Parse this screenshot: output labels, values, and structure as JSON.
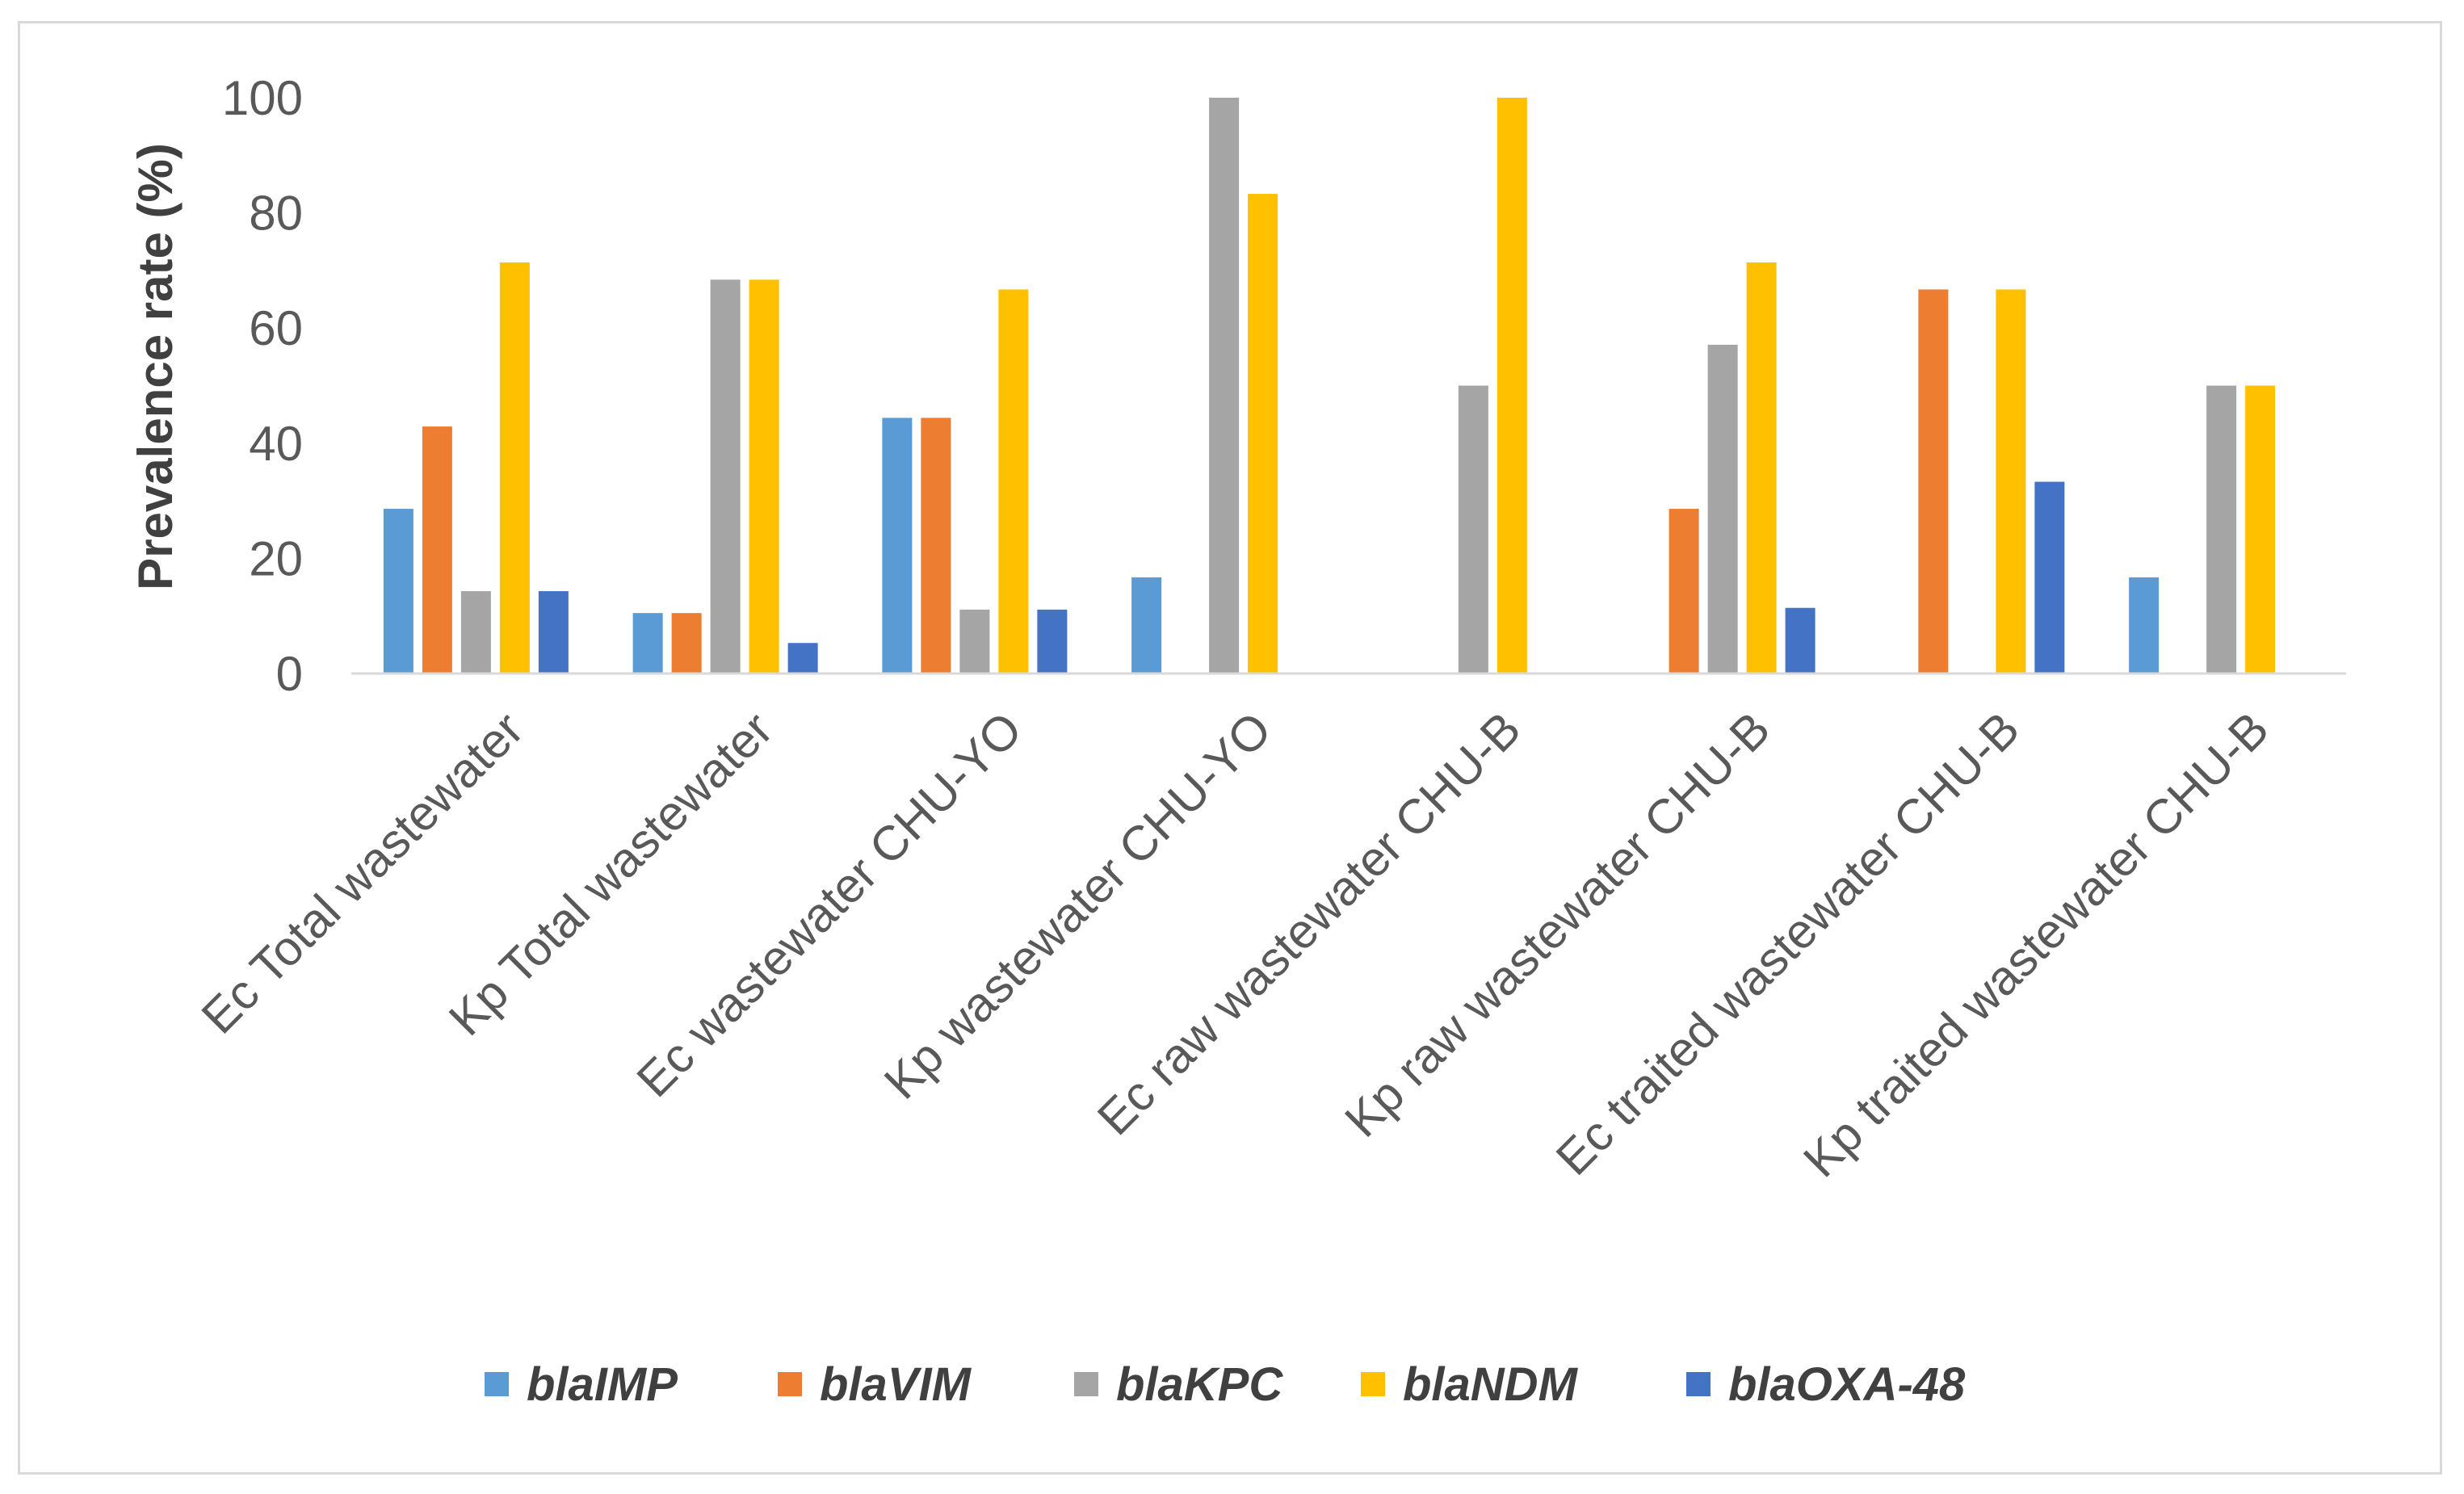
{
  "chart_data": {
    "type": "bar",
    "title": "",
    "xlabel": "",
    "ylabel": "Prevalence rate (%)",
    "ylim": [
      0,
      100
    ],
    "yticks": [
      0,
      20,
      40,
      60,
      80,
      100
    ],
    "grid": false,
    "legend_position": "bottom",
    "categories": [
      "Ec Total wastewater",
      "Kp Total wastewater",
      "Ec wastewater CHU-YO",
      "Kp wastewater CHU-YO",
      "Ec raw wastewater CHU-B",
      "Kp raw wastewater CHU-B",
      "Ec traited wastewater CHU-B",
      "Kp traited wastewater CHU-B"
    ],
    "series": [
      {
        "name": "blaIMP",
        "color": "#5b9bd5",
        "values": [
          28.6,
          10.5,
          44.4,
          16.7,
          0,
          0,
          0,
          16.7
        ]
      },
      {
        "name": "blaVIM",
        "color": "#ed7d31",
        "values": [
          42.9,
          10.5,
          44.4,
          0,
          0,
          28.6,
          66.7,
          0
        ]
      },
      {
        "name": "blaKPC",
        "color": "#a5a5a5",
        "values": [
          14.3,
          68.4,
          11.1,
          100,
          50,
          57.1,
          0,
          50
        ]
      },
      {
        "name": "blaNDM",
        "color": "#ffc000",
        "values": [
          71.4,
          68.4,
          66.7,
          83.3,
          100,
          71.4,
          66.7,
          50
        ]
      },
      {
        "name": "blaOXA-48",
        "color": "#4472c4",
        "values": [
          14.3,
          5.3,
          11.1,
          0,
          0,
          11.4,
          33.3,
          0
        ]
      }
    ]
  }
}
